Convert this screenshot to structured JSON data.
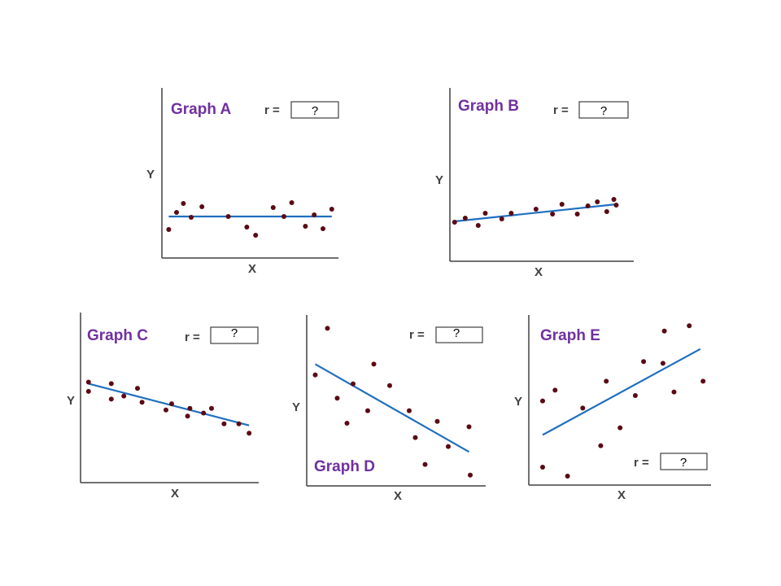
{
  "colors": {
    "title": "#7030a0",
    "axis": "#404040",
    "point": "#5a0a14",
    "line": "#1f6fc0"
  },
  "graphs": [
    {
      "id": "A",
      "title": "Graph A",
      "x_label": "X",
      "y_label": "Y",
      "r_label": "r =",
      "r_value": "?",
      "points": [
        [
          0.7,
          3.5
        ],
        [
          1.5,
          5.6
        ],
        [
          2.2,
          6.7
        ],
        [
          3.0,
          5.0
        ],
        [
          4.1,
          6.3
        ],
        [
          6.8,
          5.1
        ],
        [
          8.7,
          3.8
        ],
        [
          9.6,
          2.8
        ],
        [
          11.4,
          6.2
        ],
        [
          12.5,
          5.1
        ],
        [
          13.3,
          6.8
        ],
        [
          14.7,
          3.9
        ],
        [
          15.6,
          5.3
        ],
        [
          16.5,
          3.6
        ],
        [
          17.4,
          6.0
        ]
      ],
      "trend": [
        [
          0.7,
          5.1
        ],
        [
          17.4,
          5.1
        ]
      ]
    },
    {
      "id": "B",
      "title": "Graph B",
      "x_label": "X",
      "y_label": "Y",
      "r_label": "r =",
      "r_value": "?",
      "points": [
        [
          0.4,
          4.8
        ],
        [
          1.3,
          5.3
        ],
        [
          2.4,
          4.4
        ],
        [
          3.0,
          5.9
        ],
        [
          4.4,
          5.2
        ],
        [
          5.2,
          5.9
        ],
        [
          7.3,
          6.4
        ],
        [
          8.7,
          5.8
        ],
        [
          9.5,
          7.0
        ],
        [
          10.8,
          5.8
        ],
        [
          11.7,
          6.8
        ],
        [
          12.5,
          7.3
        ],
        [
          13.3,
          6.1
        ],
        [
          13.9,
          7.6
        ],
        [
          14.1,
          6.9
        ]
      ],
      "trend": [
        [
          0.4,
          4.9
        ],
        [
          14.1,
          7.0
        ]
      ]
    },
    {
      "id": "C",
      "title": "Graph C",
      "x_label": "X",
      "y_label": "Y",
      "r_label": "r =",
      "r_value": "?",
      "points": [
        [
          0.7,
          6.5
        ],
        [
          0.7,
          5.9
        ],
        [
          2.7,
          6.4
        ],
        [
          2.7,
          5.4
        ],
        [
          3.8,
          5.6
        ],
        [
          5.0,
          6.1
        ],
        [
          5.4,
          5.2
        ],
        [
          7.5,
          4.7
        ],
        [
          8.0,
          5.1
        ],
        [
          9.4,
          4.3
        ],
        [
          9.6,
          4.8
        ],
        [
          10.8,
          4.5
        ],
        [
          11.5,
          4.8
        ],
        [
          12.6,
          3.8
        ],
        [
          13.9,
          3.8
        ],
        [
          14.8,
          3.2
        ]
      ],
      "trend": [
        [
          0.7,
          6.4
        ],
        [
          14.8,
          3.7
        ]
      ]
    },
    {
      "id": "D",
      "title": "Graph D",
      "x_label": "X",
      "y_label": "Y",
      "r_label": "r =",
      "r_value": "?",
      "points": [
        [
          0.7,
          6.2
        ],
        [
          1.7,
          8.8
        ],
        [
          2.5,
          4.9
        ],
        [
          3.3,
          3.5
        ],
        [
          3.8,
          5.7
        ],
        [
          5.0,
          4.2
        ],
        [
          5.5,
          6.8
        ],
        [
          6.8,
          5.6
        ],
        [
          8.4,
          4.2
        ],
        [
          8.9,
          2.7
        ],
        [
          9.7,
          1.2
        ],
        [
          10.7,
          3.6
        ],
        [
          11.6,
          2.2
        ],
        [
          13.3,
          3.3
        ],
        [
          13.4,
          0.6
        ]
      ],
      "trend": [
        [
          0.7,
          6.8
        ],
        [
          13.3,
          1.9
        ]
      ]
    },
    {
      "id": "E",
      "title": "Graph E",
      "x_label": "X",
      "y_label": "Y",
      "r_label": "r =",
      "r_value": "?",
      "points": [
        [
          1.0,
          4.7
        ],
        [
          1.9,
          5.3
        ],
        [
          1.0,
          1.0
        ],
        [
          2.8,
          0.5
        ],
        [
          3.9,
          4.3
        ],
        [
          5.2,
          2.2
        ],
        [
          5.6,
          5.8
        ],
        [
          6.6,
          3.2
        ],
        [
          7.7,
          5.0
        ],
        [
          8.3,
          6.9
        ],
        [
          9.7,
          6.8
        ],
        [
          9.8,
          8.6
        ],
        [
          10.5,
          5.2
        ],
        [
          11.6,
          8.9
        ],
        [
          12.6,
          5.8
        ]
      ],
      "trend": [
        [
          1.0,
          2.8
        ],
        [
          12.4,
          7.6
        ]
      ]
    }
  ]
}
